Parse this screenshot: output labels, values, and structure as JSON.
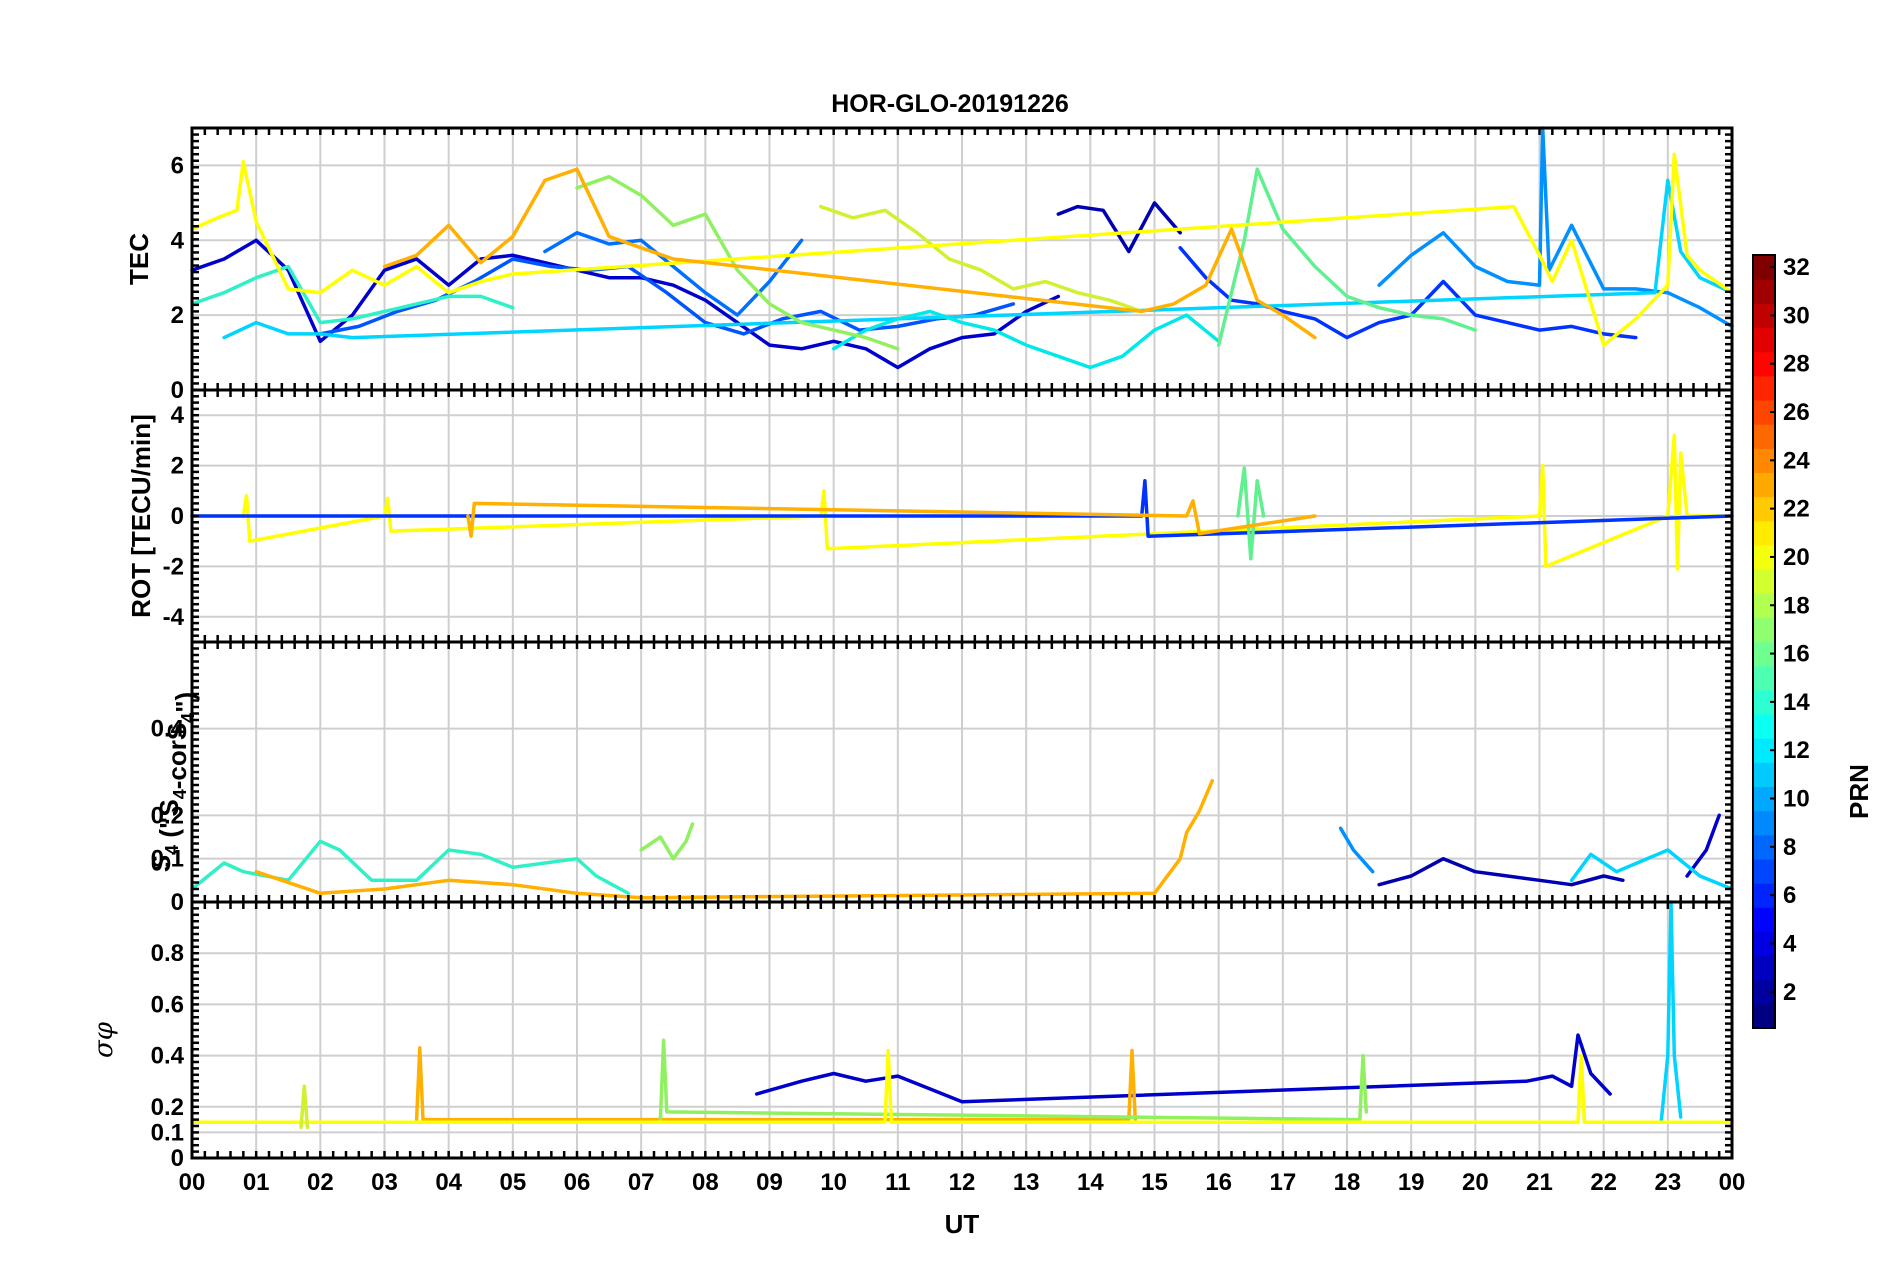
{
  "chart_data": {
    "type": "line",
    "title": "HOR-GLO-20191226",
    "xlabel": "UT",
    "x_ticks": [
      "00",
      "01",
      "02",
      "03",
      "04",
      "05",
      "06",
      "07",
      "08",
      "09",
      "10",
      "11",
      "12",
      "13",
      "14",
      "15",
      "16",
      "17",
      "18",
      "19",
      "20",
      "21",
      "22",
      "23",
      "00"
    ],
    "colorbar": {
      "label": "PRN",
      "range": [
        1,
        32
      ],
      "ticks": [
        "2",
        "4",
        "6",
        "8",
        "10",
        "12",
        "14",
        "16",
        "18",
        "20",
        "22",
        "24",
        "26",
        "28",
        "30",
        "32"
      ],
      "colormap": "jet"
    },
    "panels": [
      {
        "id": "tec",
        "ylabel": "TEC",
        "ylim": [
          0,
          7
        ],
        "yticks": [
          "0",
          "2",
          "4",
          "6"
        ],
        "series": [
          {
            "prn": 3,
            "color": "#0000cc",
            "x": [
              0,
              0.5,
              1,
              1.5,
              2,
              2.5,
              3,
              3.5,
              4,
              4.5,
              5,
              5.5,
              6,
              6.5,
              7,
              7.5,
              8,
              8.5,
              9,
              9.5,
              10,
              10.5,
              11,
              11.5,
              12,
              12.5,
              13,
              13.5
            ],
            "y": [
              3.2,
              3.5,
              4.0,
              3.2,
              1.3,
              2.0,
              3.2,
              3.5,
              2.8,
              3.5,
              3.6,
              3.4,
              3.2,
              3.0,
              3.0,
              2.8,
              2.4,
              1.8,
              1.2,
              1.1,
              1.3,
              1.1,
              0.6,
              1.1,
              1.4,
              1.5,
              2.1,
              2.5
            ]
          },
          {
            "prn": 2,
            "color": "#0000b0",
            "x": [
              13.5,
              13.8,
              14.2,
              14.6,
              15.0,
              15.4
            ],
            "y": [
              4.7,
              4.9,
              4.8,
              3.7,
              5.0,
              4.2
            ]
          },
          {
            "prn": 5,
            "color": "#0033ff",
            "x": [
              15.4,
              15.8,
              16.2,
              16.6,
              17.0,
              17.5,
              18.0,
              18.5,
              19.0,
              19.5,
              20.0,
              20.5,
              21.0,
              21.5,
              22.0,
              22.5
            ],
            "y": [
              3.8,
              3.0,
              2.4,
              2.3,
              2.1,
              1.9,
              1.4,
              1.8,
              2.0,
              2.9,
              2.0,
              1.8,
              1.6,
              1.7,
              1.5,
              1.4
            ]
          },
          {
            "prn": 6,
            "color": "#0055ff",
            "x": [
              2.0,
              2.6,
              3.2,
              3.8,
              4.4,
              5.0,
              5.6,
              6.2,
              6.8,
              7.4,
              8.0,
              8.6,
              9.2,
              9.8,
              10.4,
              11.0,
              11.6,
              12.2,
              12.8
            ],
            "y": [
              1.5,
              1.7,
              2.1,
              2.4,
              2.9,
              3.5,
              3.3,
              3.2,
              3.3,
              2.6,
              1.8,
              1.5,
              1.9,
              2.1,
              1.6,
              1.7,
              1.9,
              2.0,
              2.3
            ]
          },
          {
            "prn": 9,
            "color": "#0090ff",
            "x": [
              18.5,
              19.0,
              19.5,
              20.0,
              20.5,
              21.0,
              21.05,
              21.15,
              21.5,
              22.0,
              22.5,
              23.0,
              23.5,
              24.0
            ],
            "y": [
              2.8,
              3.6,
              4.2,
              3.3,
              2.9,
              2.8,
              7.0,
              3.2,
              4.4,
              2.7,
              2.7,
              2.6,
              2.2,
              1.7
            ]
          },
          {
            "prn": 8,
            "color": "#0070ff",
            "x": [
              5.5,
              6.0,
              6.5,
              7.0,
              7.5,
              8.0,
              8.5,
              9.0,
              9.5
            ],
            "y": [
              3.7,
              4.2,
              3.9,
              4.0,
              3.3,
              2.6,
              2.0,
              2.9,
              4.0
            ]
          },
          {
            "prn": 12,
            "color": "#00d4ff",
            "x": [
              0.5,
              1.0,
              1.5,
              2.0,
              2.5,
              22.8,
              23.0,
              23.2,
              23.5,
              24.0
            ],
            "y": [
              1.4,
              1.8,
              1.5,
              1.5,
              1.4,
              2.6,
              5.6,
              3.7,
              3.0,
              2.6
            ]
          },
          {
            "prn": 13,
            "color": "#00e8e8",
            "x": [
              10.0,
              10.5,
              11.0,
              11.5,
              12.0,
              12.5,
              13.0,
              13.5,
              14.0,
              14.5,
              15.0,
              15.5,
              16.0
            ],
            "y": [
              1.1,
              1.6,
              1.9,
              2.1,
              1.8,
              1.6,
              1.2,
              0.9,
              0.6,
              0.9,
              1.6,
              2.0,
              1.3
            ]
          },
          {
            "prn": 14,
            "color": "#30f0c8",
            "x": [
              0,
              0.5,
              1.0,
              1.5,
              2.0,
              2.5,
              3.0,
              3.5,
              4.0,
              4.5,
              5.0
            ],
            "y": [
              2.3,
              2.6,
              3.0,
              3.3,
              1.8,
              1.9,
              2.1,
              2.3,
              2.5,
              2.5,
              2.2
            ]
          },
          {
            "prn": 16,
            "color": "#60f090",
            "x": [
              16.0,
              16.4,
              16.6,
              17.0,
              17.5,
              18.0,
              18.5,
              19.0,
              19.5,
              20.0
            ],
            "y": [
              1.2,
              4.0,
              5.9,
              4.3,
              3.3,
              2.5,
              2.2,
              2.0,
              1.9,
              1.6
            ]
          },
          {
            "prn": 17,
            "color": "#90f060",
            "x": [
              6.0,
              6.5,
              7.0,
              7.5,
              8.0,
              8.5,
              9.0,
              9.5,
              10.0,
              10.5,
              11.0
            ],
            "y": [
              5.4,
              5.7,
              5.2,
              4.4,
              4.7,
              3.2,
              2.3,
              1.8,
              1.6,
              1.4,
              1.1
            ]
          },
          {
            "prn": 19,
            "color": "#d0f030",
            "x": [
              9.8,
              10.3,
              10.8,
              11.3,
              11.8,
              12.3,
              12.8,
              13.3,
              13.8,
              14.3,
              14.8
            ],
            "y": [
              4.9,
              4.6,
              4.8,
              4.2,
              3.5,
              3.2,
              2.7,
              2.9,
              2.6,
              2.4,
              2.1
            ]
          },
          {
            "prn": 20,
            "color": "#ffff00",
            "x": [
              0,
              0.4,
              0.7,
              0.8,
              1.0,
              1.5,
              2.0,
              2.5,
              3.0,
              3.5,
              4.0,
              4.5,
              5.0,
              20.6,
              21.0,
              21.2,
              21.5,
              22.0,
              22.5,
              23.0,
              23.1,
              23.3,
              23.5,
              24.0
            ],
            "y": [
              4.3,
              4.6,
              4.8,
              6.1,
              4.5,
              2.7,
              2.6,
              3.2,
              2.8,
              3.3,
              2.6,
              2.9,
              3.1,
              4.9,
              3.6,
              2.9,
              4.0,
              1.2,
              1.9,
              2.8,
              6.3,
              3.6,
              3.2,
              2.6
            ]
          },
          {
            "prn": 22,
            "color": "#ffb000",
            "x": [
              3.0,
              3.5,
              4.0,
              4.5,
              5.0,
              5.5,
              6.0,
              6.5,
              7.0,
              7.5,
              14.8,
              15.3,
              15.8,
              16.2,
              16.6,
              17.0,
              17.5
            ],
            "y": [
              3.3,
              3.6,
              4.4,
              3.4,
              4.1,
              5.6,
              5.9,
              4.1,
              3.8,
              3.5,
              2.1,
              2.3,
              2.8,
              4.3,
              2.4,
              2.0,
              1.4
            ]
          }
        ]
      },
      {
        "id": "rot",
        "ylabel": "ROT [TECU/min]",
        "ylim": [
          -5,
          5
        ],
        "yticks": [
          "-4",
          "-2",
          "0",
          "2",
          "4"
        ],
        "series": [
          {
            "prn": 20,
            "color": "#ffff00",
            "x": [
              0,
              0.8,
              0.85,
              0.9,
              3.0,
              3.05,
              3.1,
              9.8,
              9.85,
              9.9,
              21.0,
              21.05,
              21.1,
              23.0,
              23.1,
              23.15,
              23.2,
              23.3,
              24.0
            ],
            "y": [
              0,
              0,
              0.8,
              -1.0,
              0,
              0.7,
              -0.6,
              0,
              1.0,
              -1.3,
              0,
              2.0,
              -2.0,
              0,
              3.2,
              -2.1,
              2.5,
              0,
              0
            ]
          },
          {
            "prn": 5,
            "color": "#0033ff",
            "x": [
              0,
              14.8,
              14.85,
              14.9,
              24.0
            ],
            "y": [
              0,
              0,
              1.4,
              -0.8,
              0
            ]
          },
          {
            "prn": 16,
            "color": "#60f090",
            "x": [
              16.3,
              16.4,
              16.5,
              16.6,
              16.7
            ],
            "y": [
              0,
              1.9,
              -1.7,
              1.4,
              0
            ]
          },
          {
            "prn": 22,
            "color": "#ffb000",
            "x": [
              4.3,
              4.35,
              4.4,
              15.5,
              15.6,
              15.7,
              17.5
            ],
            "y": [
              0,
              -0.8,
              0.5,
              0,
              0.6,
              -0.7,
              0
            ]
          }
        ]
      },
      {
        "id": "s4",
        "ylabel": "S4 (\"S4-corS4\")",
        "ylim": [
          0,
          0.6
        ],
        "yticks": [
          "0",
          "0.1",
          "0.2",
          "0.4"
        ],
        "series": [
          {
            "prn": 14,
            "color": "#30f0c8",
            "x": [
              0,
              0.5,
              0.8,
              1.5,
              2.0,
              2.3,
              2.8,
              3.5,
              4.0,
              4.5,
              5.0,
              5.5,
              6.0,
              6.3,
              6.8
            ],
            "y": [
              0.03,
              0.09,
              0.07,
              0.05,
              0.14,
              0.12,
              0.05,
              0.05,
              0.12,
              0.11,
              0.08,
              0.09,
              0.1,
              0.06,
              0.02
            ]
          },
          {
            "prn": 22,
            "color": "#ffb000",
            "x": [
              1.0,
              2.0,
              3.0,
              4.0,
              5.0,
              6.0,
              7.0,
              15.0,
              15.4,
              15.5,
              15.7,
              15.9
            ],
            "y": [
              0.07,
              0.02,
              0.03,
              0.05,
              0.04,
              0.02,
              0.01,
              0.02,
              0.1,
              0.16,
              0.21,
              0.28
            ]
          },
          {
            "prn": 17,
            "color": "#90f060",
            "x": [
              7.0,
              7.3,
              7.5,
              7.7,
              7.8
            ],
            "y": [
              0.12,
              0.15,
              0.1,
              0.14,
              0.18
            ]
          },
          {
            "prn": 2,
            "color": "#0000b0",
            "x": [
              18.5,
              19.0,
              19.5,
              20.0,
              20.5,
              21.0,
              21.5,
              22.0,
              22.3
            ],
            "y": [
              0.04,
              0.06,
              0.1,
              0.07,
              0.06,
              0.05,
              0.04,
              0.06,
              0.05
            ]
          },
          {
            "prn": 3,
            "color": "#0000cc",
            "x": [
              23.3,
              23.6,
              23.8
            ],
            "y": [
              0.06,
              0.12,
              0.2
            ]
          },
          {
            "prn": 9,
            "color": "#0090ff",
            "x": [
              17.9,
              18.1,
              18.4
            ],
            "y": [
              0.17,
              0.12,
              0.07
            ]
          },
          {
            "prn": 12,
            "color": "#00d4ff",
            "x": [
              21.5,
              21.8,
              22.2,
              23.0,
              23.5,
              24.0
            ],
            "y": [
              0.05,
              0.11,
              0.07,
              0.12,
              0.06,
              0.03
            ]
          }
        ]
      },
      {
        "id": "sigma_phi",
        "ylabel": "σφ",
        "ylim": [
          0,
          1.0
        ],
        "yticks": [
          "0",
          "0.1",
          "0.2",
          "0.4",
          "0.6",
          "0.8"
        ],
        "series": [
          {
            "prn": 3,
            "color": "#0000cc",
            "x": [
              8.8,
              9.5,
              10.0,
              10.5,
              11.0,
              11.5,
              12.0,
              20.8,
              21.2,
              21.5,
              21.6,
              21.8,
              22.1
            ],
            "y": [
              0.25,
              0.3,
              0.33,
              0.3,
              0.32,
              0.27,
              0.22,
              0.3,
              0.32,
              0.28,
              0.48,
              0.33,
              0.25
            ]
          },
          {
            "prn": 12,
            "color": "#00d4ff",
            "x": [
              22.9,
              23.0,
              23.05,
              23.1,
              23.2
            ],
            "y": [
              0.15,
              0.4,
              1.0,
              0.4,
              0.16
            ]
          },
          {
            "prn": 22,
            "color": "#ffb000",
            "x": [
              3.5,
              3.55,
              3.6,
              14.6,
              14.65,
              14.7
            ],
            "y": [
              0.15,
              0.43,
              0.15,
              0.15,
              0.42,
              0.15
            ]
          },
          {
            "prn": 17,
            "color": "#90f060",
            "x": [
              7.3,
              7.35,
              7.4,
              18.2,
              18.25,
              18.3
            ],
            "y": [
              0.15,
              0.46,
              0.18,
              0.15,
              0.4,
              0.18
            ]
          },
          {
            "prn": 20,
            "color": "#ffff00",
            "x": [
              0,
              10.8,
              10.85,
              10.9,
              21.6,
              21.65,
              21.7,
              24.0
            ],
            "y": [
              0.14,
              0.14,
              0.42,
              0.14,
              0.14,
              0.4,
              0.14,
              0.14
            ]
          },
          {
            "prn": 19,
            "color": "#d0f030",
            "x": [
              1.7,
              1.75,
              1.8
            ],
            "y": [
              0.12,
              0.28,
              0.12
            ]
          }
        ]
      }
    ]
  }
}
